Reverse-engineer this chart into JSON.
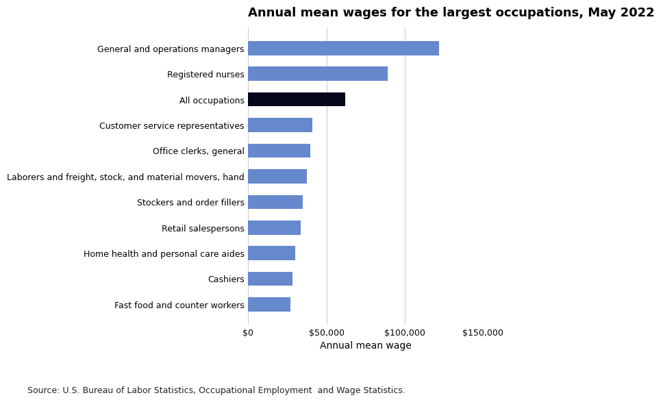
{
  "title": "Annual mean wages for the largest occupations, May 2022",
  "categories": [
    "Fast food and counter workers",
    "Cashiers",
    "Home health and personal care aides",
    "Retail salespersons",
    "Stockers and order fillers",
    "Laborers and freight, stock, and material movers, hand",
    "Office clerks, general",
    "Customer service representatives",
    "All occupations",
    "Registered nurses",
    "General and operations managers"
  ],
  "values": [
    27040,
    28240,
    30180,
    33670,
    34730,
    37590,
    39560,
    40990,
    61900,
    89010,
    122060
  ],
  "bar_colors": [
    "#6688cc",
    "#6688cc",
    "#6688cc",
    "#6688cc",
    "#6688cc",
    "#6688cc",
    "#6688cc",
    "#6688cc",
    "#05071a",
    "#6688cc",
    "#6688cc"
  ],
  "xlabel": "Annual mean wage",
  "xlim": [
    0,
    150000
  ],
  "xticks": [
    0,
    50000,
    100000,
    150000
  ],
  "xtick_labels": [
    "$0",
    "$50,000",
    "$100,000",
    "$150,000"
  ],
  "source": "Source: U.S. Bureau of Labor Statistics, Occupational Employment  and Wage Statistics.",
  "title_fontsize": 13,
  "xlabel_fontsize": 10,
  "tick_fontsize": 9,
  "label_fontsize": 9,
  "source_fontsize": 9,
  "background_color": "#ffffff",
  "grid_color": "#cccccc",
  "plot_bg_color": "#ffffff"
}
